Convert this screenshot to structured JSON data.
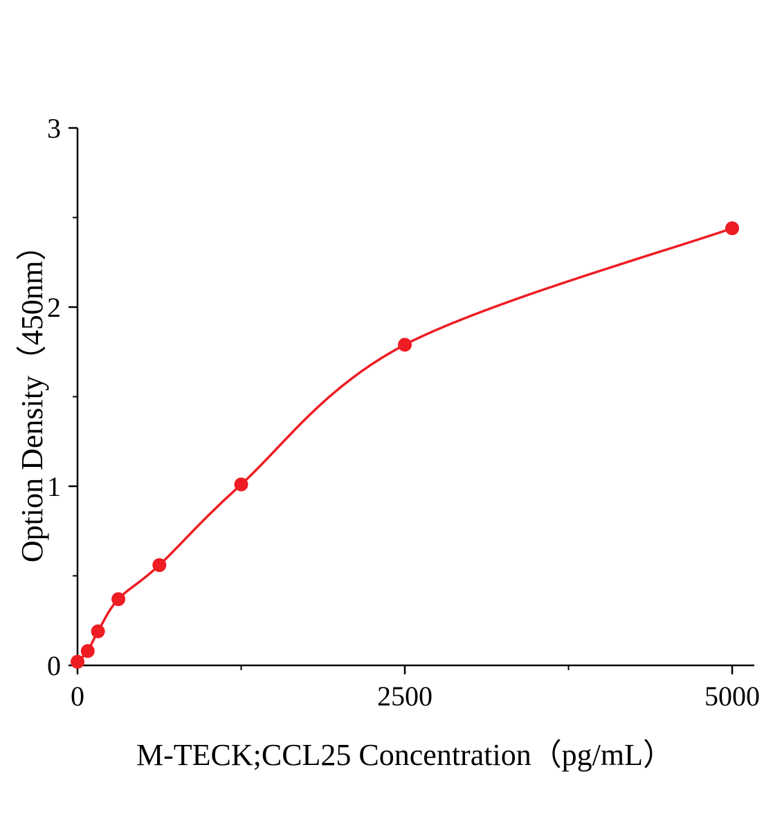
{
  "figure": {
    "background": "#ffffff"
  },
  "chart_data": {
    "type": "scatter",
    "title": "",
    "xlabel": "M-TECK;CCL25 Concentration（pg/mL）",
    "ylabel": "Option Density（450nm）",
    "x": [
      0,
      78.1,
      156.3,
      312.5,
      625,
      1250,
      2500,
      5000
    ],
    "y": [
      0.02,
      0.08,
      0.19,
      0.37,
      0.56,
      1.01,
      1.79,
      2.44
    ],
    "xlim": [
      0,
      5000
    ],
    "ylim": [
      0,
      3
    ],
    "x_ticks": [
      {
        "value": 0,
        "label": "0"
      },
      {
        "value": 2500,
        "label": "2500"
      },
      {
        "value": 5000,
        "label": "5000"
      }
    ],
    "x_minor_ticks": [
      1250,
      3750
    ],
    "y_ticks": [
      {
        "value": 0,
        "label": "0"
      },
      {
        "value": 1,
        "label": "1"
      },
      {
        "value": 2,
        "label": "2"
      },
      {
        "value": 3,
        "label": "3"
      }
    ],
    "y_minor_ticks": [
      0.5,
      1.5,
      2.5
    ],
    "grid": "off",
    "legend": "none",
    "colors": {
      "curve": "#ee1c23",
      "points": "#ee1c23",
      "axis": "#000000",
      "tick_label": "#000000"
    },
    "marker_radius": 10,
    "curve_width": 3.5
  }
}
